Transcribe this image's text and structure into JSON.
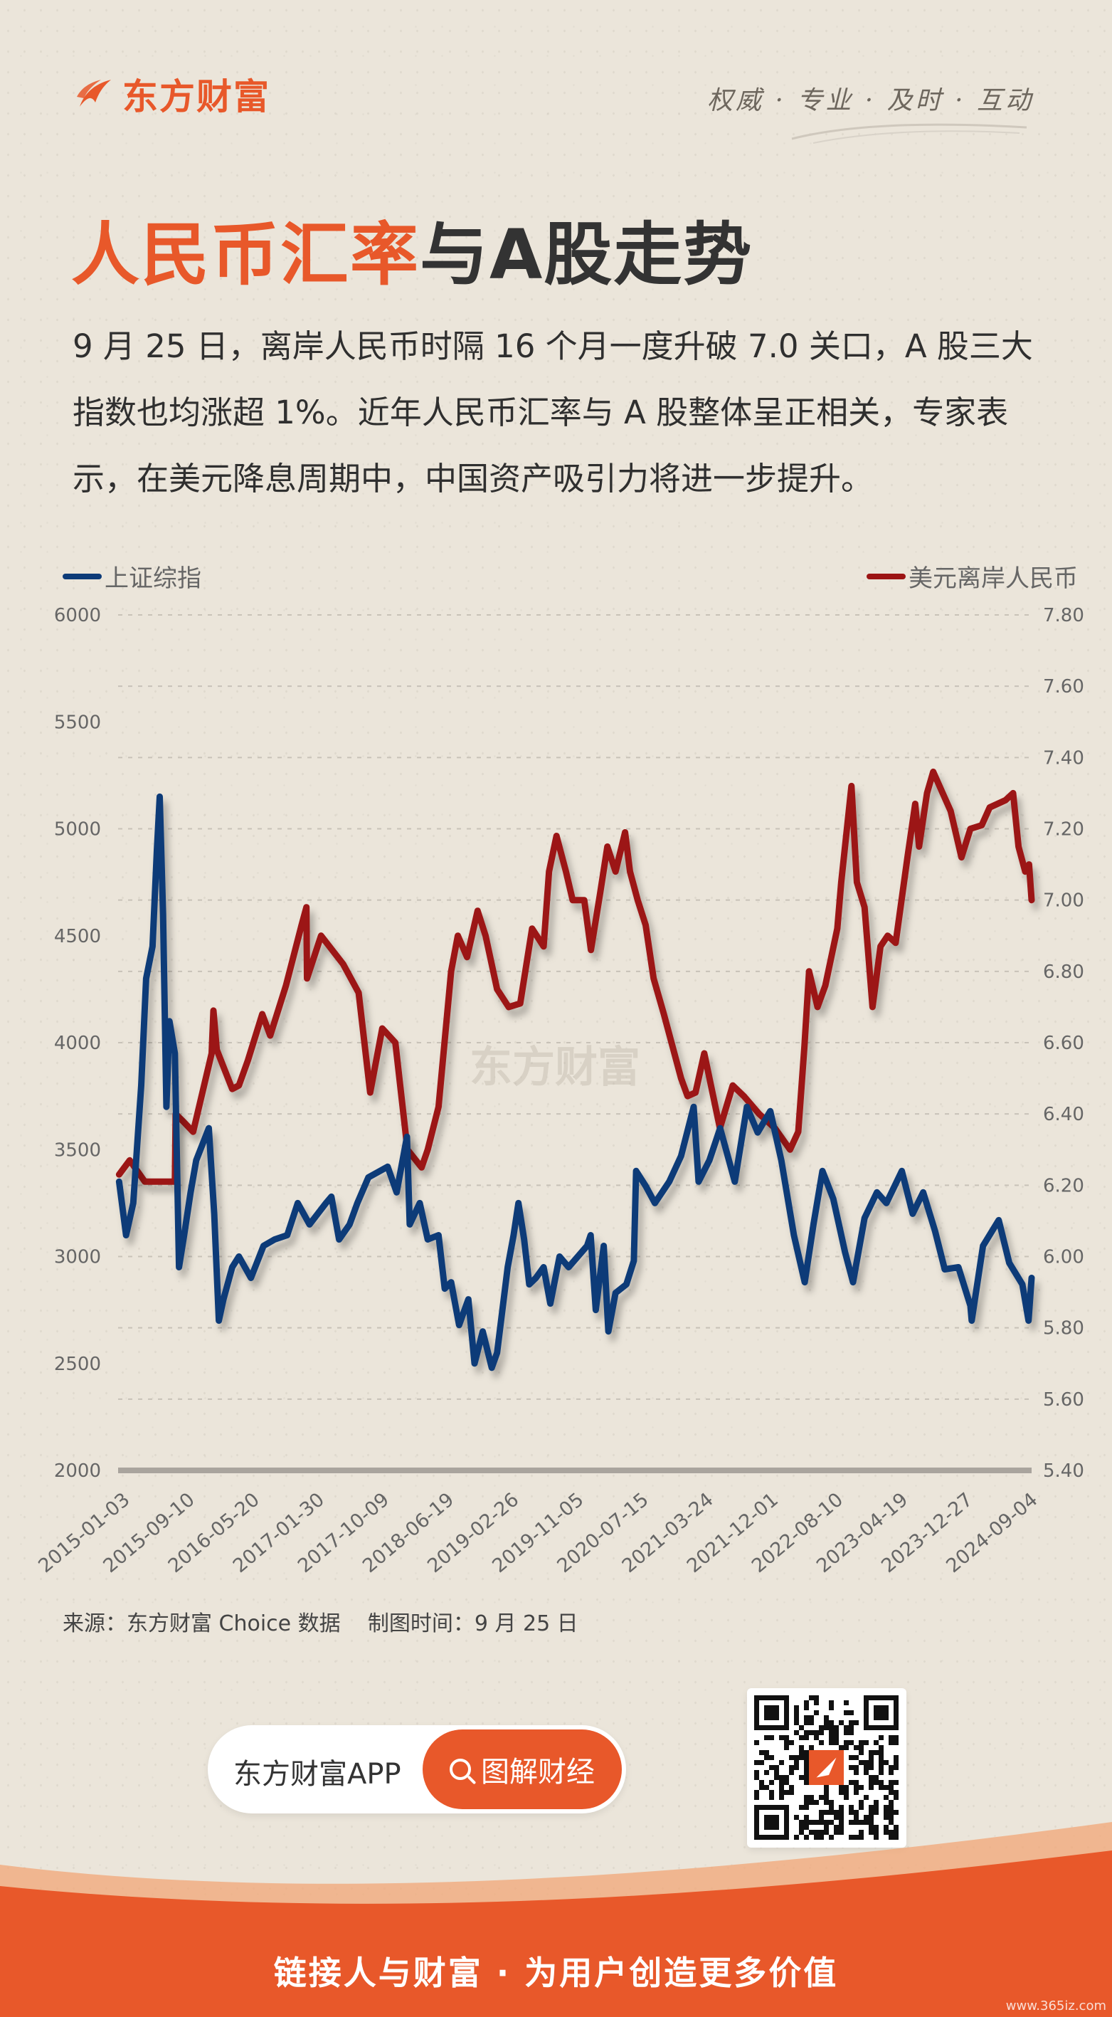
{
  "header": {
    "brand": "东方财富",
    "slogan": "权威 · 专业 · 及时 · 互动"
  },
  "title": {
    "highlight": "人民币汇率",
    "rest": "与A股走势"
  },
  "intro": "9 月 25 日，离岸人民币时隔 16 个月一度升破 7.0 关口，A 股三大指数也均涨超 1%。近年人民币汇率与 A 股整体呈正相关，专家表示，在美元降息周期中，中国资产吸引力将进一步提升。",
  "chart_data": {
    "type": "line",
    "watermark": "东方财富",
    "x_ticks": [
      "2015-01-03",
      "2015-09-10",
      "2016-05-20",
      "2017-01-30",
      "2017-10-09",
      "2018-06-19",
      "2019-02-26",
      "2019-11-05",
      "2020-07-15",
      "2021-03-24",
      "2021-12-01",
      "2022-08-10",
      "2023-04-19",
      "2023-12-27",
      "2024-09-04"
    ],
    "x_range": [
      "2015-01-01",
      "2024-09-25"
    ],
    "y_left": {
      "range": [
        2000,
        6000
      ],
      "ticks": [
        "2000",
        "2500",
        "3000",
        "3500",
        "4000",
        "4500",
        "5000",
        "5500",
        "6000"
      ]
    },
    "y_right": {
      "range": [
        5.4,
        7.8
      ],
      "ticks": [
        "5.40",
        "5.60",
        "5.80",
        "6.00",
        "6.20",
        "6.40",
        "6.60",
        "6.80",
        "7.00",
        "7.20",
        "7.40",
        "7.60",
        "7.80"
      ]
    },
    "grid": "horizontal dashed",
    "series": [
      {
        "name": "上证综指",
        "axis": "left",
        "color": "#0d3b78",
        "points": [
          [
            "2015-01-05",
            3350
          ],
          [
            "2015-02-01",
            3100
          ],
          [
            "2015-03-01",
            3250
          ],
          [
            "2015-04-01",
            3800
          ],
          [
            "2015-04-20",
            4300
          ],
          [
            "2015-05-15",
            4450
          ],
          [
            "2015-06-01",
            4900
          ],
          [
            "2015-06-12",
            5150
          ],
          [
            "2015-06-25",
            4600
          ],
          [
            "2015-07-08",
            3700
          ],
          [
            "2015-07-20",
            4100
          ],
          [
            "2015-08-10",
            3950
          ],
          [
            "2015-08-26",
            2950
          ],
          [
            "2015-09-15",
            3100
          ],
          [
            "2015-10-10",
            3300
          ],
          [
            "2015-11-01",
            3450
          ],
          [
            "2015-12-20",
            3600
          ],
          [
            "2016-01-10",
            3200
          ],
          [
            "2016-01-28",
            2700
          ],
          [
            "2016-02-15",
            2800
          ],
          [
            "2016-03-20",
            2950
          ],
          [
            "2016-04-15",
            3000
          ],
          [
            "2016-06-01",
            2900
          ],
          [
            "2016-07-20",
            3050
          ],
          [
            "2016-09-01",
            3080
          ],
          [
            "2016-10-20",
            3100
          ],
          [
            "2016-11-30",
            3250
          ],
          [
            "2017-01-15",
            3150
          ],
          [
            "2017-03-20",
            3250
          ],
          [
            "2017-04-10",
            3280
          ],
          [
            "2017-05-10",
            3080
          ],
          [
            "2017-06-20",
            3150
          ],
          [
            "2017-07-20",
            3250
          ],
          [
            "2017-09-01",
            3370
          ],
          [
            "2017-11-15",
            3420
          ],
          [
            "2017-12-20",
            3300
          ],
          [
            "2018-01-29",
            3560
          ],
          [
            "2018-02-09",
            3150
          ],
          [
            "2018-03-20",
            3250
          ],
          [
            "2018-04-20",
            3080
          ],
          [
            "2018-06-01",
            3100
          ],
          [
            "2018-06-25",
            2850
          ],
          [
            "2018-07-20",
            2880
          ],
          [
            "2018-08-20",
            2680
          ],
          [
            "2018-09-25",
            2800
          ],
          [
            "2018-10-19",
            2500
          ],
          [
            "2018-11-20",
            2650
          ],
          [
            "2018-12-25",
            2480
          ],
          [
            "2019-01-15",
            2550
          ],
          [
            "2019-02-25",
            2950
          ],
          [
            "2019-03-20",
            3100
          ],
          [
            "2019-04-08",
            3250
          ],
          [
            "2019-04-30",
            3080
          ],
          [
            "2019-05-20",
            2870
          ],
          [
            "2019-06-15",
            2900
          ],
          [
            "2019-07-15",
            2950
          ],
          [
            "2019-08-10",
            2780
          ],
          [
            "2019-09-15",
            3000
          ],
          [
            "2019-10-20",
            2950
          ],
          [
            "2019-12-31",
            3050
          ],
          [
            "2020-01-14",
            3100
          ],
          [
            "2020-02-03",
            2750
          ],
          [
            "2020-03-05",
            3050
          ],
          [
            "2020-03-23",
            2650
          ],
          [
            "2020-04-20",
            2830
          ],
          [
            "2020-06-01",
            2870
          ],
          [
            "2020-06-30",
            2980
          ],
          [
            "2020-07-09",
            3400
          ],
          [
            "2020-08-15",
            3330
          ],
          [
            "2020-09-20",
            3250
          ],
          [
            "2020-11-15",
            3350
          ],
          [
            "2020-12-31",
            3470
          ],
          [
            "2021-02-18",
            3700
          ],
          [
            "2021-03-09",
            3350
          ],
          [
            "2021-04-20",
            3450
          ],
          [
            "2021-06-01",
            3600
          ],
          [
            "2021-07-28",
            3350
          ],
          [
            "2021-09-13",
            3700
          ],
          [
            "2021-10-25",
            3580
          ],
          [
            "2021-12-13",
            3680
          ],
          [
            "2022-01-25",
            3450
          ],
          [
            "2022-03-15",
            3100
          ],
          [
            "2022-04-26",
            2880
          ],
          [
            "2022-05-30",
            3150
          ],
          [
            "2022-07-04",
            3400
          ],
          [
            "2022-08-15",
            3270
          ],
          [
            "2022-09-30",
            3020
          ],
          [
            "2022-10-31",
            2880
          ],
          [
            "2022-12-15",
            3180
          ],
          [
            "2023-02-01",
            3300
          ],
          [
            "2023-03-10",
            3250
          ],
          [
            "2023-05-09",
            3400
          ],
          [
            "2023-06-20",
            3200
          ],
          [
            "2023-07-31",
            3300
          ],
          [
            "2023-09-15",
            3120
          ],
          [
            "2023-10-23",
            2940
          ],
          [
            "2023-12-15",
            2950
          ],
          [
            "2024-01-31",
            2770
          ],
          [
            "2024-02-05",
            2700
          ],
          [
            "2024-03-20",
            3050
          ],
          [
            "2024-05-20",
            3170
          ],
          [
            "2024-06-30",
            2970
          ],
          [
            "2024-08-20",
            2870
          ],
          [
            "2024-09-13",
            2700
          ],
          [
            "2024-09-25",
            2900
          ]
        ]
      },
      {
        "name": "美元离岸人民币",
        "axis": "right",
        "color": "#9c1414",
        "points": [
          [
            "2015-01-05",
            6.23
          ],
          [
            "2015-02-15",
            6.27
          ],
          [
            "2015-04-15",
            6.21
          ],
          [
            "2015-06-15",
            6.21
          ],
          [
            "2015-08-10",
            6.21
          ],
          [
            "2015-08-13",
            6.4
          ],
          [
            "2015-09-10",
            6.38
          ],
          [
            "2015-10-20",
            6.35
          ],
          [
            "2015-12-31",
            6.57
          ],
          [
            "2016-01-07",
            6.69
          ],
          [
            "2016-01-20",
            6.58
          ],
          [
            "2016-03-20",
            6.47
          ],
          [
            "2016-04-15",
            6.48
          ],
          [
            "2016-05-20",
            6.55
          ],
          [
            "2016-07-15",
            6.68
          ],
          [
            "2016-08-15",
            6.62
          ],
          [
            "2016-10-15",
            6.76
          ],
          [
            "2016-12-15",
            6.93
          ],
          [
            "2017-01-03",
            6.98
          ],
          [
            "2017-01-05",
            6.78
          ],
          [
            "2017-03-01",
            6.9
          ],
          [
            "2017-05-26",
            6.82
          ],
          [
            "2017-07-25",
            6.74
          ],
          [
            "2017-09-08",
            6.46
          ],
          [
            "2017-10-25",
            6.64
          ],
          [
            "2017-12-15",
            6.6
          ],
          [
            "2018-01-31",
            6.3
          ],
          [
            "2018-03-27",
            6.25
          ],
          [
            "2018-04-20",
            6.3
          ],
          [
            "2018-06-01",
            6.42
          ],
          [
            "2018-07-20",
            6.8
          ],
          [
            "2018-08-15",
            6.9
          ],
          [
            "2018-09-20",
            6.84
          ],
          [
            "2018-10-31",
            6.97
          ],
          [
            "2018-12-01",
            6.9
          ],
          [
            "2019-01-15",
            6.75
          ],
          [
            "2019-03-01",
            6.7
          ],
          [
            "2019-04-15",
            6.71
          ],
          [
            "2019-05-31",
            6.92
          ],
          [
            "2019-07-15",
            6.87
          ],
          [
            "2019-08-05",
            7.08
          ],
          [
            "2019-09-03",
            7.18
          ],
          [
            "2019-10-10",
            7.08
          ],
          [
            "2019-11-05",
            7.0
          ],
          [
            "2019-12-20",
            7.0
          ],
          [
            "2020-01-15",
            6.86
          ],
          [
            "2020-02-20",
            7.02
          ],
          [
            "2020-03-19",
            7.15
          ],
          [
            "2020-04-20",
            7.08
          ],
          [
            "2020-05-27",
            7.19
          ],
          [
            "2020-06-15",
            7.08
          ],
          [
            "2020-07-15",
            7.0
          ],
          [
            "2020-08-15",
            6.93
          ],
          [
            "2020-09-15",
            6.78
          ],
          [
            "2020-10-25",
            6.68
          ],
          [
            "2020-12-31",
            6.5
          ],
          [
            "2021-01-25",
            6.45
          ],
          [
            "2021-02-25",
            6.46
          ],
          [
            "2021-03-31",
            6.57
          ],
          [
            "2021-05-31",
            6.36
          ],
          [
            "2021-07-20",
            6.48
          ],
          [
            "2021-09-01",
            6.45
          ],
          [
            "2021-10-31",
            6.4
          ],
          [
            "2021-12-31",
            6.36
          ],
          [
            "2022-02-28",
            6.3
          ],
          [
            "2022-04-01",
            6.35
          ],
          [
            "2022-04-25",
            6.59
          ],
          [
            "2022-05-13",
            6.8
          ],
          [
            "2022-06-15",
            6.7
          ],
          [
            "2022-07-15",
            6.76
          ],
          [
            "2022-08-31",
            6.92
          ],
          [
            "2022-09-15",
            7.05
          ],
          [
            "2022-10-25",
            7.32
          ],
          [
            "2022-11-15",
            7.05
          ],
          [
            "2022-12-15",
            6.98
          ],
          [
            "2023-01-15",
            6.7
          ],
          [
            "2023-02-15",
            6.87
          ],
          [
            "2023-03-15",
            6.9
          ],
          [
            "2023-04-15",
            6.88
          ],
          [
            "2023-05-31",
            7.12
          ],
          [
            "2023-06-30",
            7.27
          ],
          [
            "2023-07-15",
            7.15
          ],
          [
            "2023-08-15",
            7.3
          ],
          [
            "2023-09-08",
            7.36
          ],
          [
            "2023-10-15",
            7.3
          ],
          [
            "2023-11-15",
            7.25
          ],
          [
            "2023-12-27",
            7.12
          ],
          [
            "2024-01-31",
            7.2
          ],
          [
            "2024-03-15",
            7.21
          ],
          [
            "2024-04-15",
            7.26
          ],
          [
            "2024-06-15",
            7.28
          ],
          [
            "2024-07-15",
            7.3
          ],
          [
            "2024-08-05",
            7.15
          ],
          [
            "2024-08-31",
            7.08
          ],
          [
            "2024-09-15",
            7.1
          ],
          [
            "2024-09-25",
            7.0
          ]
        ]
      }
    ]
  },
  "source_note": "来源：东方财富 Choice 数据    制图时间：9 月 25 日",
  "app": {
    "name": "东方财富APP",
    "button_label": "图解财经"
  },
  "footer": {
    "tagline": "链接人与财富 · 为用户创造更多价值",
    "site_mark": "www.365iz.com"
  },
  "colors": {
    "accent": "#e8582a",
    "index_line": "#0d3b78",
    "fx_line": "#9c1414",
    "background": "#ebe5da"
  }
}
